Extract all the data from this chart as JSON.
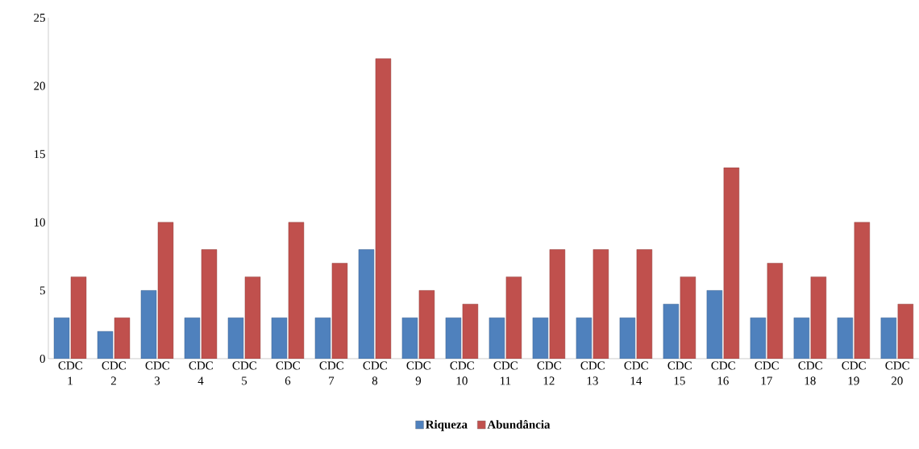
{
  "chart_data": {
    "type": "bar",
    "categories": [
      "CDC 1",
      "CDC 2",
      "CDC 3",
      "CDC 4",
      "CDC 5",
      "CDC 6",
      "CDC 7",
      "CDC 8",
      "CDC 9",
      "CDC 10",
      "CDC 11",
      "CDC 12",
      "CDC 13",
      "CDC 14",
      "CDC 15",
      "CDC 16",
      "CDC 17",
      "CDC 18",
      "CDC 19",
      "CDC 20"
    ],
    "series": [
      {
        "name": "Riqueza",
        "color": "#4f81bd",
        "values": [
          3,
          2,
          5,
          3,
          3,
          3,
          3,
          8,
          3,
          3,
          3,
          3,
          3,
          3,
          4,
          5,
          3,
          3,
          3,
          3
        ]
      },
      {
        "name": "Abundância",
        "color": "#c0504d",
        "values": [
          6,
          3,
          10,
          8,
          6,
          10,
          7,
          22,
          5,
          4,
          6,
          8,
          8,
          8,
          6,
          14,
          7,
          6,
          10,
          4
        ]
      }
    ],
    "ylim": [
      0,
      25
    ],
    "yticks": [
      0,
      5,
      10,
      15,
      20,
      25
    ],
    "grid": false,
    "legend": "bottom"
  }
}
